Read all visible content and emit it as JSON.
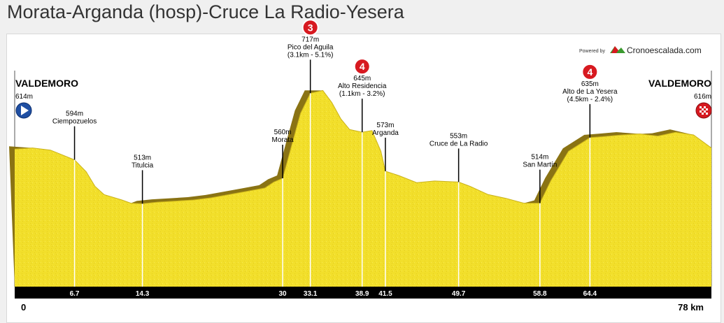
{
  "page": {
    "title": "Morata-Arganda (hosp)-Cruce La Radio-Yesera"
  },
  "branding": {
    "powered_by": "Powered by",
    "brand_name": "Cronoescalada.com"
  },
  "chart_data": {
    "type": "area",
    "title": "",
    "xlabel": "",
    "ylabel": "",
    "xlim": [
      0,
      78
    ],
    "ylim": [
      360,
      760
    ],
    "distance_unit": "km",
    "colors": {
      "fill": "#f2df2b",
      "shade": "#8a7314",
      "axis_bar": "#000000",
      "climb_badge": "#d71920"
    },
    "start": {
      "name": "VALDEMORO",
      "elevation": "614m",
      "km": "0",
      "icon": "play-icon"
    },
    "finish": {
      "name": "VALDEMORO",
      "elevation": "616m",
      "km": "78 km",
      "icon": "checkered-flag-icon"
    },
    "profile": [
      [
        0,
        614
      ],
      [
        2,
        616
      ],
      [
        4,
        612
      ],
      [
        6.7,
        594
      ],
      [
        8,
        572
      ],
      [
        9,
        545
      ],
      [
        10,
        530
      ],
      [
        12,
        520
      ],
      [
        13,
        514
      ],
      [
        14.3,
        513
      ],
      [
        16,
        516
      ],
      [
        18,
        518
      ],
      [
        20,
        520
      ],
      [
        22,
        524
      ],
      [
        24,
        530
      ],
      [
        26,
        536
      ],
      [
        28,
        542
      ],
      [
        29,
        553
      ],
      [
        30,
        560
      ],
      [
        31,
        620
      ],
      [
        32,
        680
      ],
      [
        33.1,
        717
      ],
      [
        34.5,
        722
      ],
      [
        35.5,
        700
      ],
      [
        36.5,
        670
      ],
      [
        37.5,
        650
      ],
      [
        38.9,
        645
      ],
      [
        40,
        648
      ],
      [
        41,
        610
      ],
      [
        41.5,
        573
      ],
      [
        43,
        565
      ],
      [
        45,
        552
      ],
      [
        47,
        555
      ],
      [
        49.7,
        553
      ],
      [
        51,
        545
      ],
      [
        53,
        530
      ],
      [
        55,
        523
      ],
      [
        57,
        514
      ],
      [
        58.8,
        514
      ],
      [
        60,
        555
      ],
      [
        62,
        610
      ],
      [
        64.4,
        635
      ],
      [
        66,
        637
      ],
      [
        68,
        640
      ],
      [
        70,
        642
      ],
      [
        72,
        638
      ],
      [
        74,
        645
      ],
      [
        76,
        640
      ],
      [
        78,
        616
      ]
    ],
    "waypoints": [
      {
        "km": 6.7,
        "km_label": "6.7",
        "elevation": "594m",
        "name": "Ciempozuelos",
        "detail": ""
      },
      {
        "km": 14.3,
        "km_label": "14.3",
        "elevation": "513m",
        "name": "Titulcia",
        "detail": ""
      },
      {
        "km": 30,
        "km_label": "30",
        "elevation": "560m",
        "name": "Morata",
        "detail": ""
      },
      {
        "km": 33.1,
        "km_label": "33.1",
        "elevation": "717m",
        "name": "Pico del Aguila",
        "detail": "(3.1km - 5.1%)",
        "category": "3"
      },
      {
        "km": 38.9,
        "km_label": "38.9",
        "elevation": "645m",
        "name": "Alto Residencia",
        "detail": "(1.1km - 3.2%)",
        "category": "4"
      },
      {
        "km": 41.5,
        "km_label": "41.5",
        "elevation": "573m",
        "name": "Arganda",
        "detail": ""
      },
      {
        "km": 49.7,
        "km_label": "49.7",
        "elevation": "553m",
        "name": "Cruce de La Radio",
        "detail": ""
      },
      {
        "km": 58.8,
        "km_label": "58.8",
        "elevation": "514m",
        "name": "San Martín",
        "detail": ""
      },
      {
        "km": 64.4,
        "km_label": "64.4",
        "elevation": "635m",
        "name": "Alto de La Yesera",
        "detail": "(4.5km - 2.4%)",
        "category": "4"
      }
    ]
  }
}
